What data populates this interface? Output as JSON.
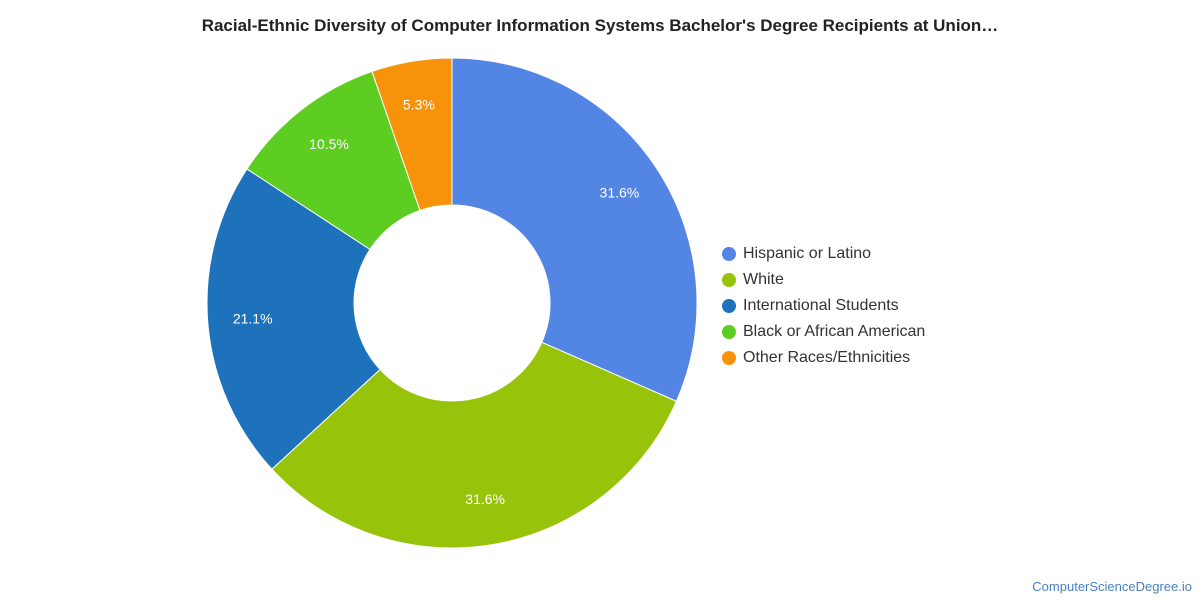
{
  "chart_data": {
    "type": "pie",
    "donut": true,
    "title": "Racial-Ethnic Diversity of Computer Information Systems Bachelor's Degree Recipients at Union…",
    "categories": [
      "Hispanic or Latino",
      "White",
      "International Students",
      "Black or African American",
      "Other Races/Ethnicities"
    ],
    "values": [
      31.6,
      31.6,
      21.1,
      10.5,
      5.3
    ],
    "labels": [
      "31.6%",
      "31.6%",
      "21.1%",
      "10.5%",
      "5.3%"
    ],
    "colors": [
      "#5385e4",
      "#97c30a",
      "#1e72bb",
      "#5ecd22",
      "#f6930a"
    ],
    "legend_position": "right"
  },
  "credit": "ComputerScienceDegree.io"
}
